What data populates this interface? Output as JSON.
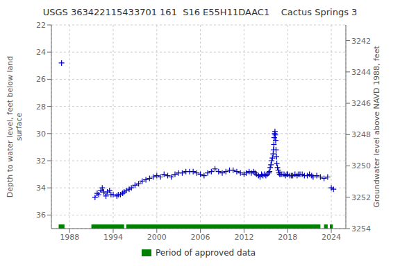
{
  "chart_data": {
    "type": "line",
    "title": "USGS 363422115433701 161  S16 E55H11DAAC1    Cactus Springs 3",
    "ylabel": "Depth to water level, feet below land\nsurface",
    "y2label": "Groundwater level above NAVD 1988, feet",
    "xlim": [
      1985.5,
      2026
    ],
    "xticks": [
      1988,
      1994,
      2000,
      2006,
      2012,
      2018,
      2024
    ],
    "ylim": [
      37,
      22
    ],
    "yticks": [
      22,
      24,
      26,
      28,
      30,
      32,
      34,
      36
    ],
    "y2lim": [
      3254,
      3241
    ],
    "y2ticks": [
      3254,
      3252,
      3250,
      3248,
      3246,
      3244,
      3242
    ],
    "grid": true,
    "series": [
      {
        "type": "line",
        "color": "#0000cc",
        "marker": "plus",
        "line_style": "none",
        "x": [
          1986.9
        ],
        "values": [
          24.8
        ]
      },
      {
        "type": "line",
        "color": "#0000cc",
        "marker": "plus",
        "line_style": "dashed",
        "x": [
          1991.5,
          1991.8,
          1992.0,
          1992.3,
          1992.5,
          1992.7,
          1993.0,
          1993.2,
          1993.5,
          1993.7,
          1994.0,
          1994.5,
          1994.7,
          1995.0,
          1995.3,
          1995.5,
          1995.8,
          1996.2,
          1996.5,
          1997.0,
          1997.5,
          1998.0,
          1998.5,
          1999.0,
          1999.5,
          2000.0,
          2000.5,
          2001.0,
          2001.5,
          2002.0,
          2002.5,
          2003.0,
          2003.5,
          2004.0,
          2004.5,
          2005.0,
          2005.5,
          2006.0,
          2006.5,
          2007.0,
          2007.5,
          2008.0,
          2008.5,
          2009.0,
          2009.5,
          2010.0,
          2010.5,
          2011.0,
          2011.5,
          2012.0,
          2012.3,
          2012.7,
          2013.0,
          2013.3,
          2013.5,
          2013.7,
          2014.0,
          2014.2,
          2014.4,
          2014.6,
          2014.8,
          2015.0,
          2015.2,
          2015.4,
          2015.5,
          2015.6,
          2015.7,
          2015.8,
          2015.9,
          2016.0,
          2016.05,
          2016.1,
          2016.15,
          2016.2,
          2016.25,
          2016.3,
          2016.35,
          2016.4,
          2016.45,
          2016.5,
          2016.6,
          2016.7,
          2016.8,
          2016.9,
          2017.0,
          2017.2,
          2017.5,
          2017.7,
          2017.9,
          2018.0,
          2018.3,
          2018.5,
          2018.7,
          2019.0,
          2019.3,
          2019.5,
          2019.7,
          2020.0,
          2020.3,
          2020.7,
          2021.0,
          2021.3,
          2021.5,
          2022.0,
          2022.5,
          2023.0,
          2023.5
        ],
        "values": [
          34.7,
          34.4,
          34.5,
          34.2,
          34.0,
          34.3,
          34.6,
          34.3,
          34.2,
          34.5,
          34.5,
          34.6,
          34.5,
          34.5,
          34.4,
          34.3,
          34.2,
          34.1,
          34.0,
          33.8,
          33.7,
          33.5,
          33.4,
          33.3,
          33.2,
          33.1,
          33.2,
          33.0,
          33.1,
          33.2,
          33.0,
          32.9,
          32.9,
          32.8,
          32.8,
          32.8,
          32.9,
          33.0,
          33.1,
          32.9,
          32.8,
          32.6,
          32.8,
          32.9,
          32.8,
          32.7,
          32.7,
          32.8,
          32.9,
          33.0,
          32.9,
          32.8,
          32.9,
          32.8,
          32.9,
          33.0,
          33.1,
          33.2,
          33.0,
          33.1,
          33.0,
          33.1,
          33.0,
          32.9,
          32.8,
          32.5,
          32.3,
          32.0,
          31.8,
          31.5,
          31.2,
          30.8,
          30.3,
          30.0,
          29.85,
          30.1,
          30.5,
          31.2,
          31.7,
          32.2,
          32.5,
          32.7,
          32.9,
          33.0,
          33.0,
          33.0,
          33.0,
          33.1,
          33.0,
          33.0,
          33.1,
          33.1,
          33.1,
          33.0,
          33.1,
          33.0,
          33.0,
          33.0,
          33.1,
          33.1,
          33.0,
          33.1,
          33.2,
          33.1,
          33.2,
          33.3,
          33.2
        ]
      },
      {
        "type": "line",
        "color": "#0000cc",
        "marker": "plus",
        "line_style": "dashed",
        "x": [
          2024.0,
          2024.3
        ],
        "values": [
          34.0,
          34.1
        ]
      },
      {
        "type": "range",
        "name": "Period of approved data",
        "color": "#008000",
        "ranges": [
          [
            1986.5,
            1987.3
          ],
          [
            1991.0,
            1995.5
          ],
          [
            1995.8,
            2022.5
          ],
          [
            2023.0,
            2023.5
          ],
          [
            2023.8,
            2024.2
          ]
        ]
      }
    ]
  }
}
